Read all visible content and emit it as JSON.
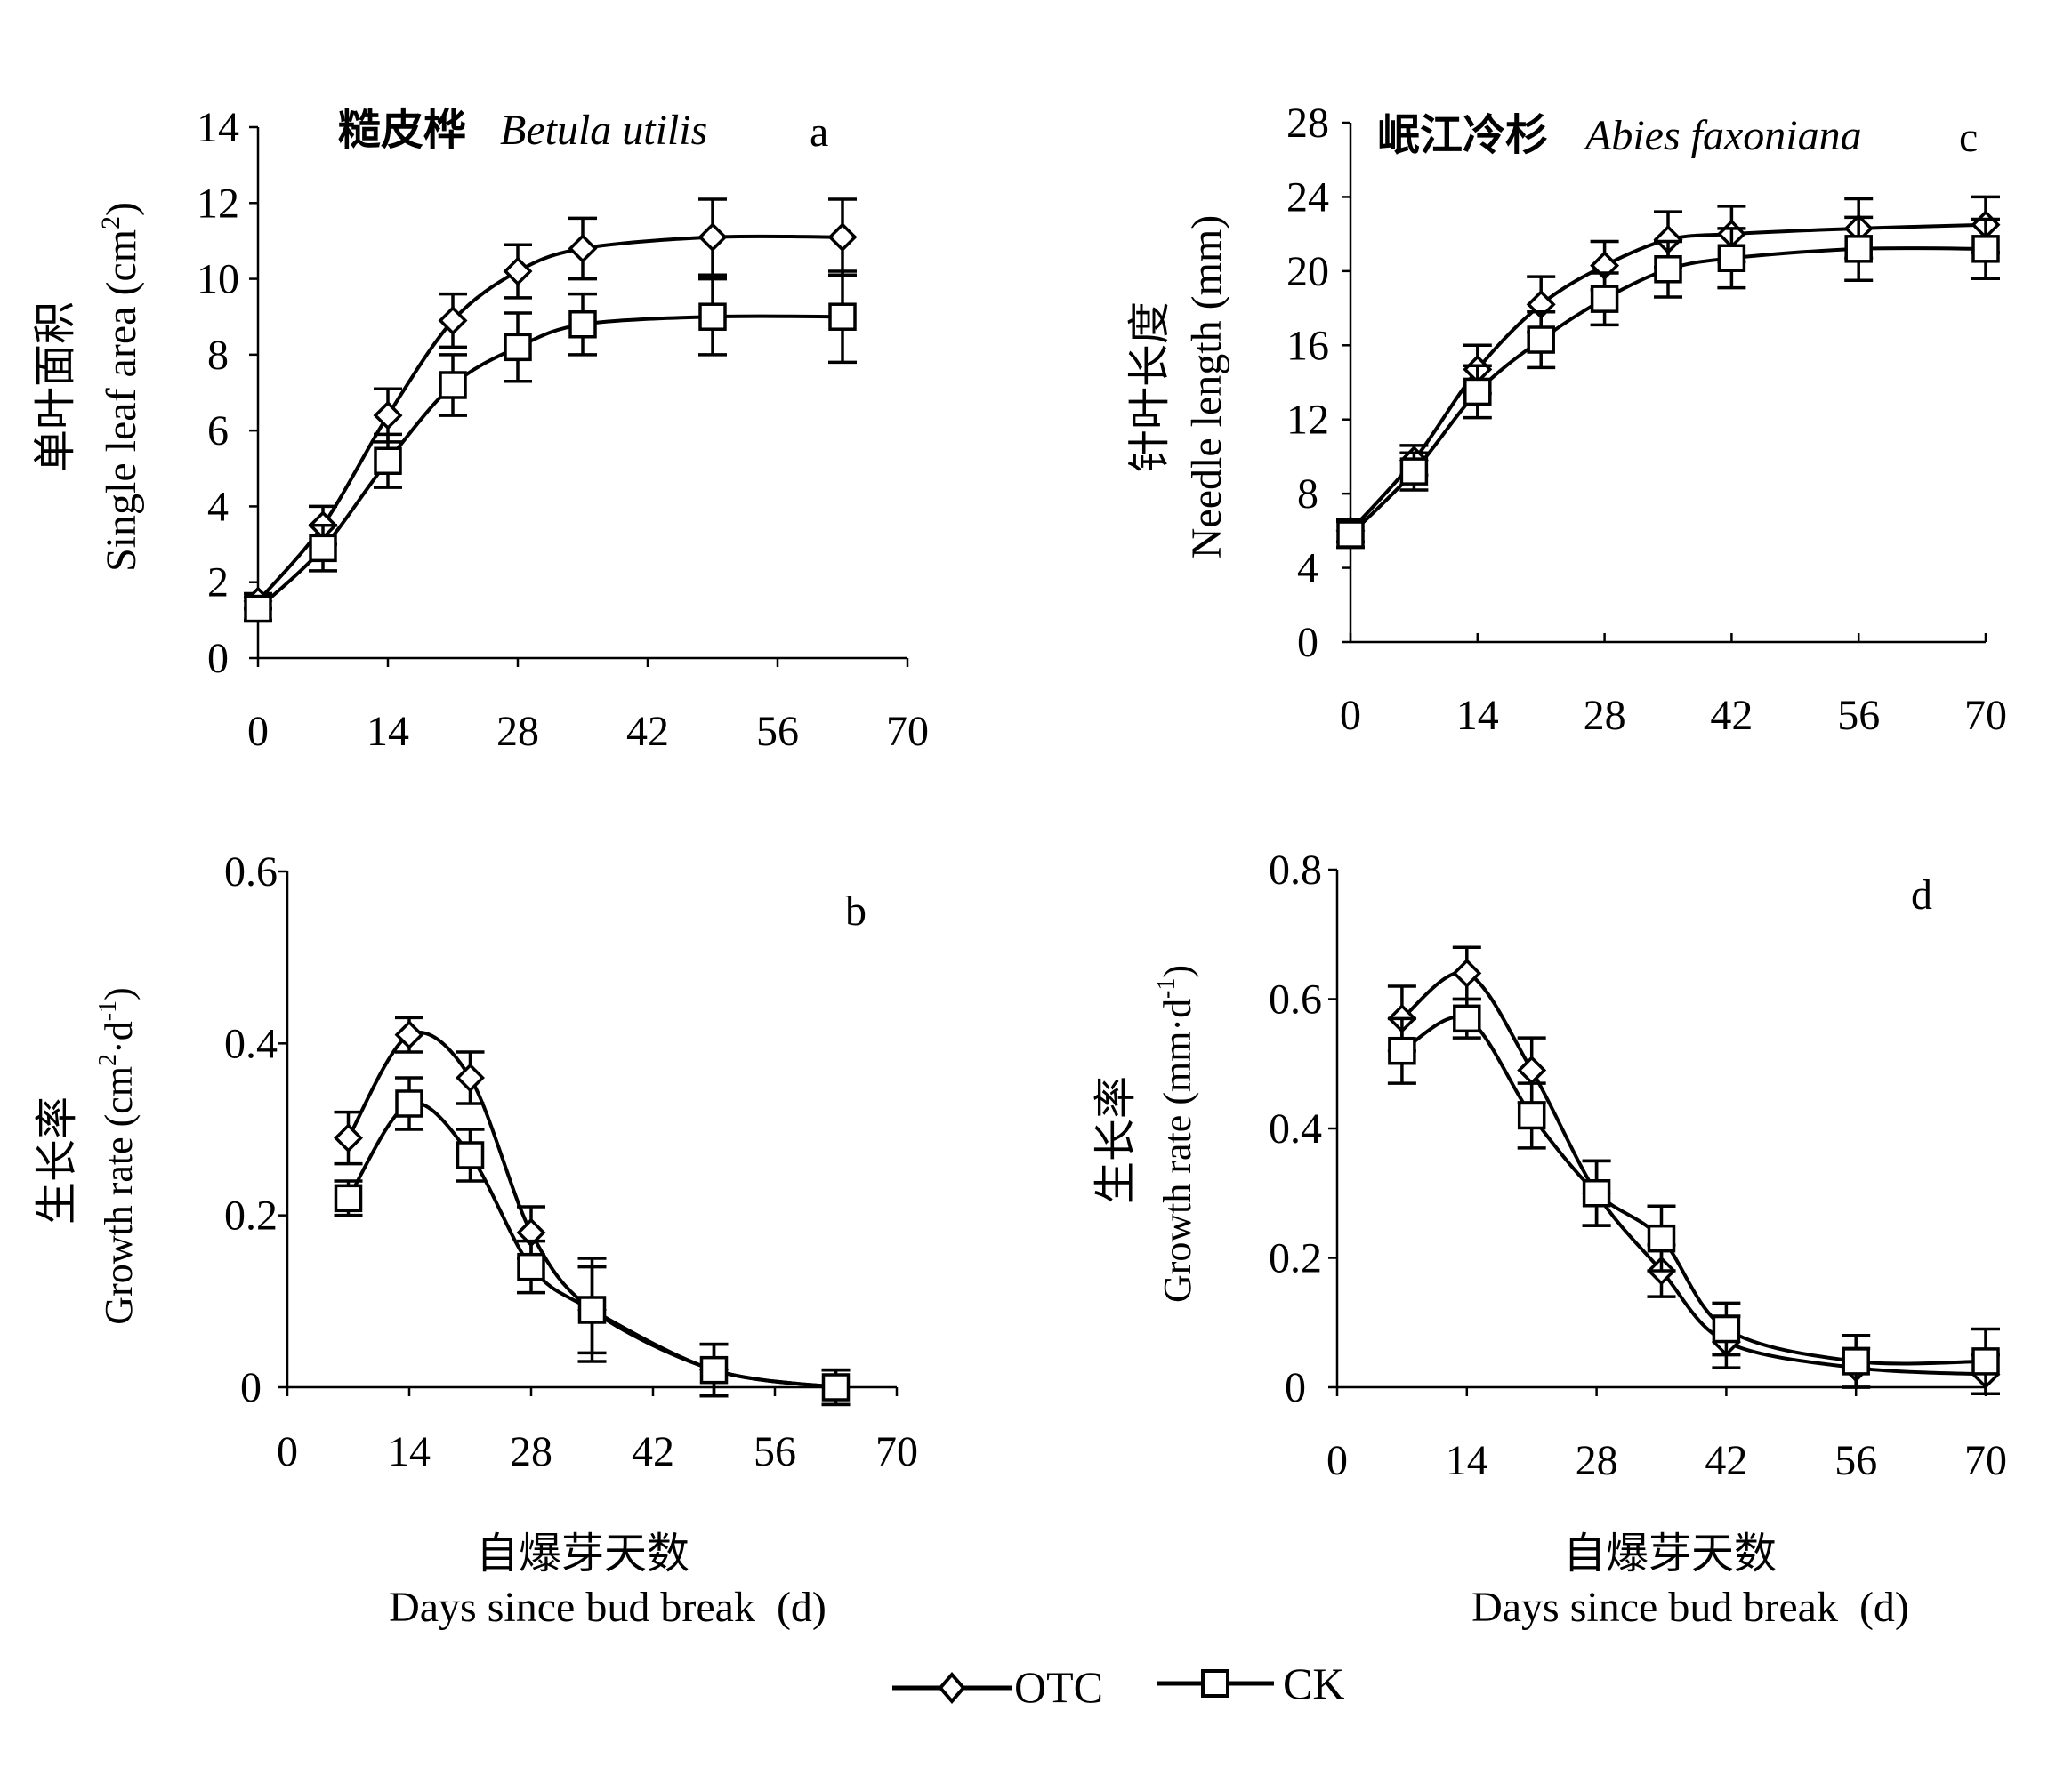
{
  "chart_data": [
    {
      "id": "a",
      "type": "line",
      "panel_label": "a",
      "title_cn": "糙皮桦",
      "title_en": "Betula utilis",
      "ylabel_cn": "单叶面积",
      "ylabel_en_prefix": "Single leaf area (cm",
      "ylabel_en_sup": "2",
      "ylabel_en_suffix": ")",
      "xlabel": "",
      "xlim": [
        0,
        70
      ],
      "ylim": [
        0,
        14
      ],
      "xticks": [
        0,
        14,
        28,
        42,
        56,
        70
      ],
      "yticks": [
        0,
        2,
        4,
        6,
        8,
        10,
        12,
        14
      ],
      "series": [
        {
          "name": "OTC",
          "marker": "diamond",
          "x": [
            0,
            7,
            14,
            21,
            28,
            35,
            49,
            63
          ],
          "y": [
            1.5,
            3.5,
            6.4,
            8.9,
            10.2,
            10.8,
            11.1,
            11.1
          ],
          "err": [
            0.2,
            0.5,
            0.7,
            0.7,
            0.7,
            0.8,
            1.0,
            1.0
          ]
        },
        {
          "name": "CK",
          "marker": "square",
          "x": [
            0,
            7,
            14,
            21,
            28,
            35,
            49,
            63
          ],
          "y": [
            1.3,
            2.9,
            5.2,
            7.2,
            8.2,
            8.8,
            9.0,
            9.0
          ],
          "err": [
            0.3,
            0.6,
            0.7,
            0.8,
            0.9,
            0.8,
            1.0,
            1.2
          ]
        }
      ]
    },
    {
      "id": "c",
      "type": "line",
      "panel_label": "c",
      "title_cn": "岷江冷杉",
      "title_en": "Abies faxoniana",
      "ylabel_cn": "针叶长度",
      "ylabel_en_prefix": "Needle length (mm)",
      "ylabel_en_sup": "",
      "ylabel_en_suffix": "",
      "xlabel": "",
      "xlim": [
        0,
        70
      ],
      "ylim": [
        0,
        28
      ],
      "xticks": [
        0,
        14,
        28,
        42,
        56,
        70
      ],
      "yticks": [
        0,
        4,
        8,
        12,
        16,
        20,
        24,
        28
      ],
      "series": [
        {
          "name": "OTC",
          "marker": "diamond",
          "x": [
            0,
            7,
            14,
            21,
            28,
            35,
            42,
            56,
            70
          ],
          "y": [
            6.0,
            9.8,
            14.7,
            18.2,
            20.3,
            21.7,
            22.0,
            22.3,
            22.5
          ],
          "err": [
            0.6,
            0.8,
            1.3,
            1.5,
            1.3,
            1.5,
            1.5,
            1.6,
            1.5
          ]
        },
        {
          "name": "CK",
          "marker": "square",
          "x": [
            0,
            7,
            14,
            21,
            28,
            35,
            42,
            56,
            70
          ],
          "y": [
            5.8,
            9.2,
            13.5,
            16.3,
            18.5,
            20.1,
            20.7,
            21.2,
            21.2
          ],
          "err": [
            0.7,
            1.0,
            1.4,
            1.5,
            1.4,
            1.5,
            1.6,
            1.7,
            1.6
          ]
        }
      ]
    },
    {
      "id": "b",
      "type": "line",
      "panel_label": "b",
      "ylabel_cn": "生长率",
      "ylabel_en_prefix": "Growth rate (cm",
      "ylabel_en_sup": "2",
      "ylabel_en_mid": "·d",
      "ylabel_en_sup2": "-1",
      "ylabel_en_suffix": ")",
      "xlabel_cn": "自爆芽天数",
      "xlabel_en": "Days since bud break  (d)",
      "xlim": [
        0,
        70
      ],
      "ylim": [
        0,
        0.6
      ],
      "xticks": [
        0,
        14,
        28,
        42,
        56,
        70
      ],
      "yticks": [
        "0",
        "0.2",
        "0.4",
        "0.6"
      ],
      "series": [
        {
          "name": "OTC",
          "marker": "diamond",
          "x": [
            7,
            14,
            21,
            28,
            35,
            49,
            63
          ],
          "y": [
            0.29,
            0.41,
            0.36,
            0.18,
            0.09,
            0.02,
            0.0
          ],
          "err": [
            0.03,
            0.02,
            0.03,
            0.03,
            0.05,
            0.03,
            0.02
          ]
        },
        {
          "name": "CK",
          "marker": "square",
          "x": [
            7,
            14,
            21,
            28,
            35,
            49,
            63
          ],
          "y": [
            0.22,
            0.33,
            0.27,
            0.14,
            0.09,
            0.02,
            0.0
          ],
          "err": [
            0.02,
            0.03,
            0.03,
            0.03,
            0.06,
            0.03,
            0.02
          ]
        }
      ]
    },
    {
      "id": "d",
      "type": "line",
      "panel_label": "d",
      "ylabel_cn": "生长率",
      "ylabel_en_prefix": "Growth rate (mm·d",
      "ylabel_en_sup": "-1",
      "ylabel_en_suffix": ")",
      "xlabel_cn": "自爆芽天数",
      "xlabel_en": "Days since bud break  (d)",
      "xlim": [
        0,
        70
      ],
      "ylim": [
        0,
        0.8
      ],
      "xticks": [
        0,
        14,
        28,
        42,
        56,
        70
      ],
      "yticks": [
        "0",
        "0.2",
        "0.4",
        "0.6",
        "0.8"
      ],
      "series": [
        {
          "name": "OTC",
          "marker": "diamond",
          "x": [
            7,
            14,
            21,
            28,
            35,
            42,
            56,
            70
          ],
          "y": [
            0.57,
            0.64,
            0.49,
            0.3,
            0.18,
            0.07,
            0.03,
            0.02
          ],
          "err": [
            0.05,
            0.04,
            0.05,
            0.05,
            0.04,
            0.04,
            0.03,
            0.03
          ]
        },
        {
          "name": "CK",
          "marker": "square",
          "x": [
            7,
            14,
            21,
            28,
            35,
            42,
            56,
            70
          ],
          "y": [
            0.52,
            0.57,
            0.42,
            0.3,
            0.23,
            0.09,
            0.04,
            0.04
          ],
          "err": [
            0.05,
            0.03,
            0.05,
            0.05,
            0.05,
            0.04,
            0.04,
            0.05
          ]
        }
      ]
    }
  ],
  "legend": {
    "items": [
      {
        "label": "OTC",
        "marker": "diamond"
      },
      {
        "label": "CK",
        "marker": "square"
      }
    ]
  },
  "colors": {
    "ink": "#000000",
    "background": "#ffffff"
  }
}
